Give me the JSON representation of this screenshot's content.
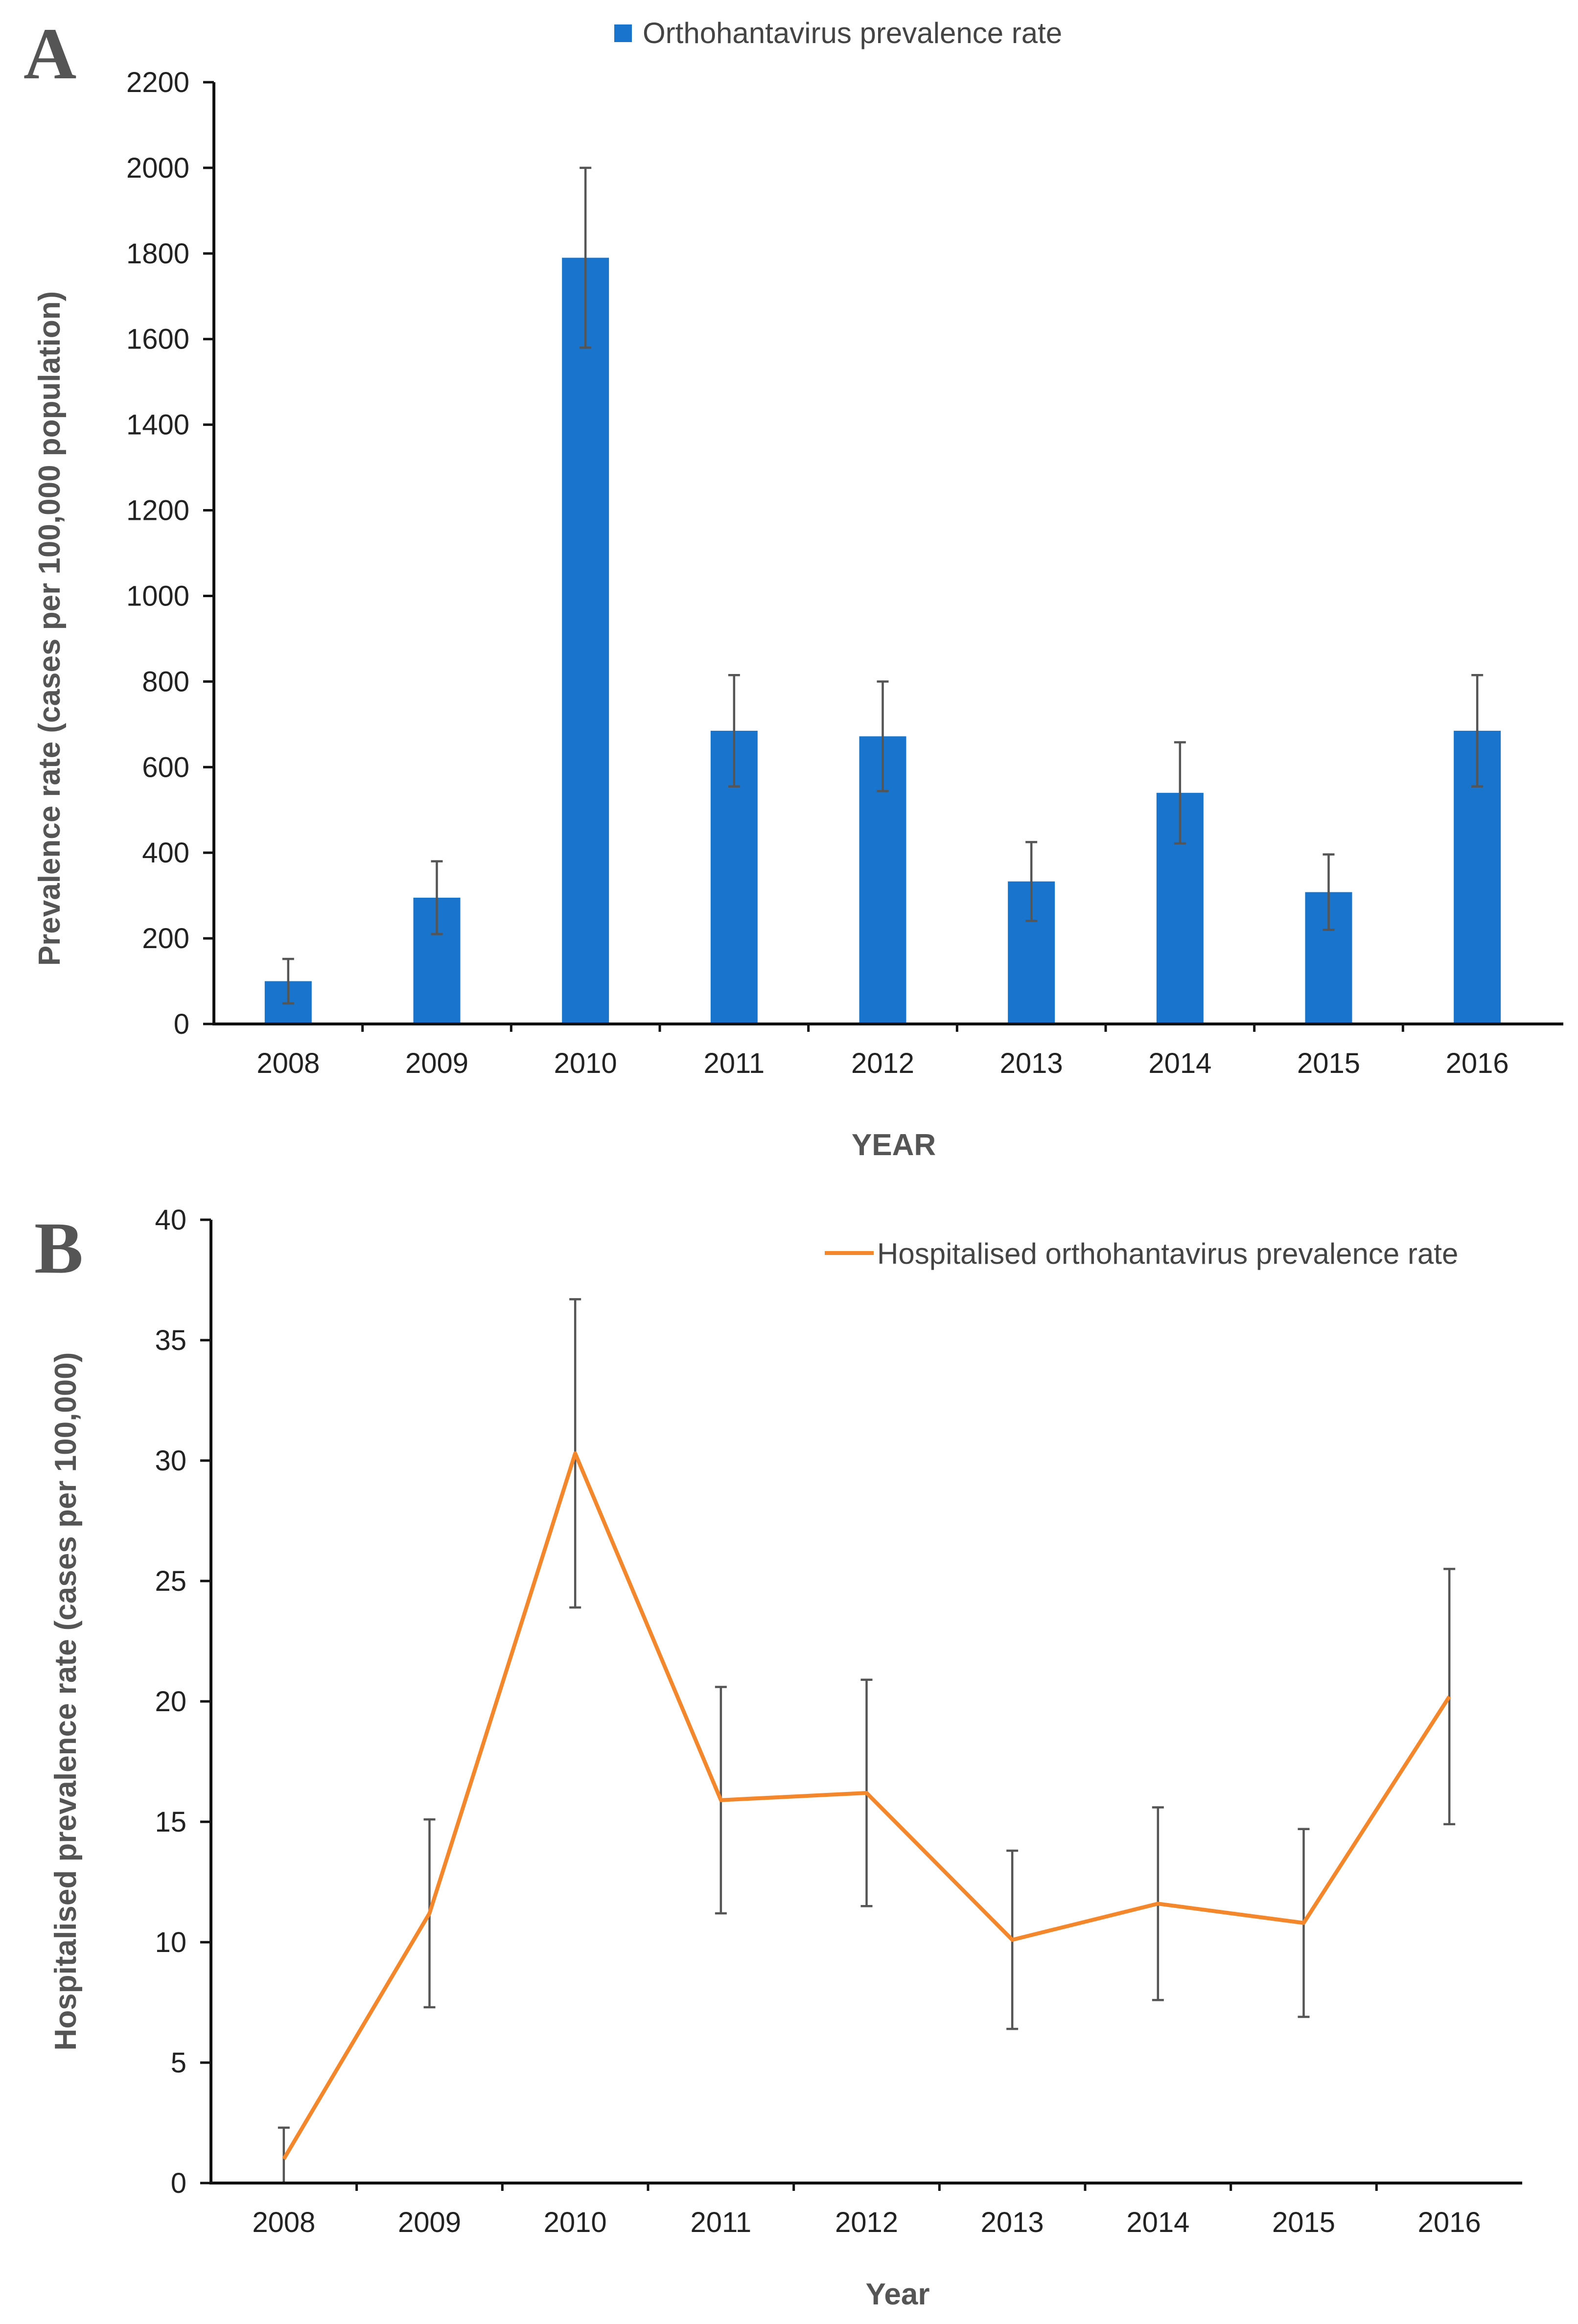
{
  "chart_data": [
    {
      "panel": "A",
      "type": "bar",
      "legend": "Orthohantavirus prevalence rate",
      "color": "#1874CD",
      "categories": [
        "2008",
        "2009",
        "2010",
        "2011",
        "2012",
        "2013",
        "2014",
        "2015",
        "2016"
      ],
      "values": [
        100,
        295,
        1790,
        685,
        672,
        333,
        540,
        308,
        685
      ],
      "errors": [
        52,
        85,
        210,
        130,
        128,
        92,
        118,
        88,
        130
      ],
      "ylim": [
        0,
        2200
      ],
      "yticks": [
        "0",
        "200",
        "400",
        "600",
        "800",
        "1000",
        "1200",
        "1400",
        "1600",
        "1800",
        "2000",
        "2200"
      ],
      "xlabel": "YEAR",
      "ylabel": "Prevalence rate (cases per 100,000 population)"
    },
    {
      "panel": "B",
      "type": "line",
      "legend": "Hospitalised orthohantavirus prevalence rate",
      "color": "#F4862B",
      "categories": [
        "2008",
        "2009",
        "2010",
        "2011",
        "2012",
        "2013",
        "2014",
        "2015",
        "2016"
      ],
      "values": [
        1.0,
        11.2,
        30.3,
        15.9,
        16.2,
        10.1,
        11.6,
        10.8,
        20.2
      ],
      "errors": [
        1.3,
        3.9,
        6.4,
        4.7,
        4.7,
        3.7,
        4.0,
        3.9,
        5.3
      ],
      "ylim": [
        0,
        40
      ],
      "yticks": [
        "0",
        "5",
        "10",
        "15",
        "20",
        "25",
        "30",
        "35",
        "40"
      ],
      "xlabel": "Year",
      "ylabel": "Hospitalised prevalence rate (cases per 100,000)"
    }
  ]
}
